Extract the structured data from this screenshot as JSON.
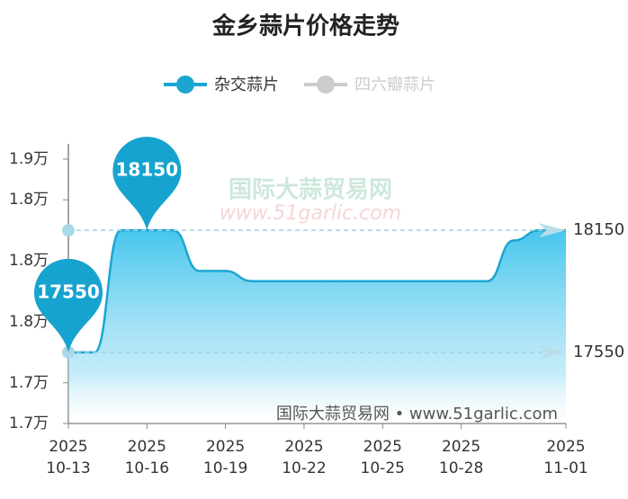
{
  "chart_data": {
    "type": "line",
    "title": "金乡蒜片价格走势",
    "categories": [
      "2025\n10-13",
      null,
      null,
      "2025\n10-16",
      null,
      null,
      "2025\n10-19",
      null,
      null,
      "2025\n10-22",
      null,
      null,
      "2025\n10-25",
      null,
      null,
      "2025\n10-28",
      null,
      null,
      null,
      "2025\n11-01"
    ],
    "series": [
      {
        "name": "杂交蒜片",
        "color": "#1ba6d2",
        "values": [
          17550,
          17550,
          18150,
          18150,
          18150,
          17950,
          17950,
          17900,
          17900,
          17900,
          17900,
          17900,
          17900,
          17900,
          17900,
          17900,
          17900,
          18100,
          18150,
          18150
        ]
      },
      {
        "name": "四六瓣蒜片",
        "color": "#cccccc",
        "visible": false,
        "values": [
          null,
          null,
          null,
          null,
          null,
          null,
          null,
          null,
          null,
          null,
          null,
          null,
          null,
          null,
          null,
          null,
          null,
          null,
          null,
          null
        ]
      }
    ],
    "max_value": 18150,
    "min_value": 17550,
    "ylim": [
      17200,
      18500
    ],
    "yticks": [
      {
        "value": 17200,
        "label": "1.7万"
      },
      {
        "value": 17400,
        "label": "1.7万"
      },
      {
        "value": 17700,
        "label": "1.8万"
      },
      {
        "value": 18000,
        "label": "1.8万"
      },
      {
        "value": 18300,
        "label": "1.8万"
      },
      {
        "value": 18500,
        "label": "1.9万"
      }
    ],
    "watermark": [
      "国际大蒜贸易网",
      "www.51garlic.com"
    ],
    "footer": "国际大蒜贸易网 • www.51garlic.com"
  }
}
